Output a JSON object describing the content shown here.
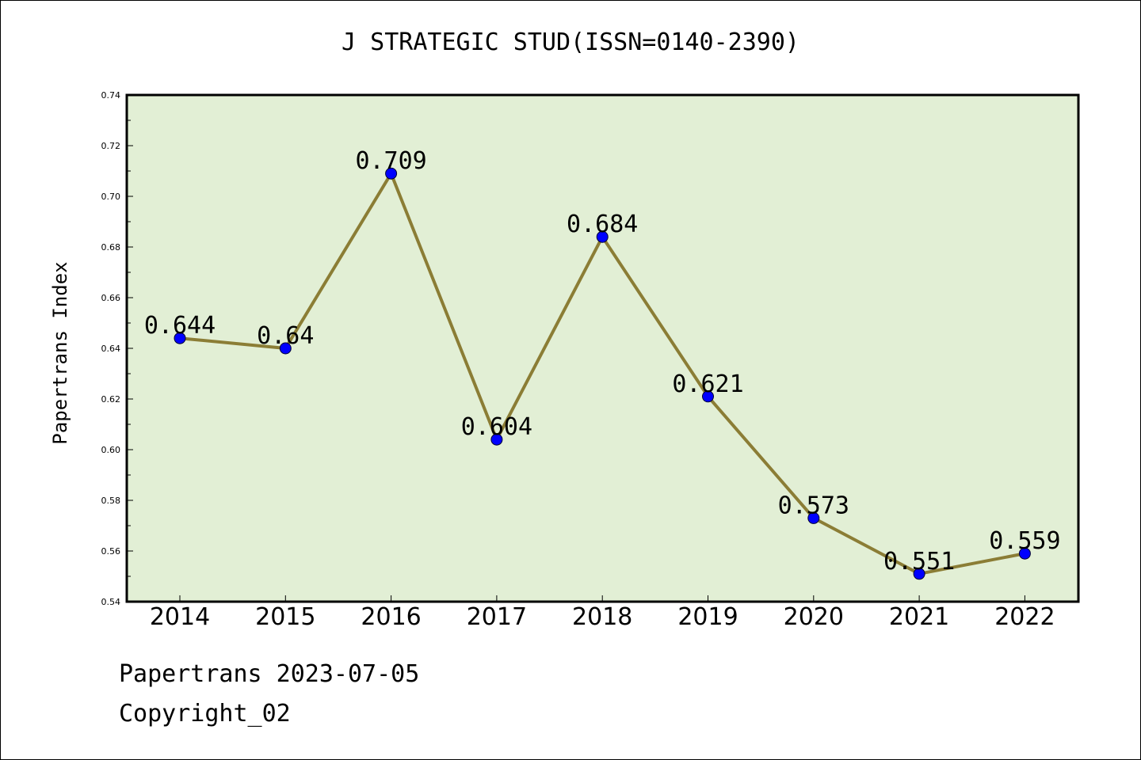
{
  "chart_data": {
    "type": "line",
    "title": "J STRATEGIC STUD(ISSN=0140-2390)",
    "ylabel": "Papertrans Index",
    "xlabel": "",
    "categories": [
      "2014",
      "2015",
      "2016",
      "2017",
      "2018",
      "2019",
      "2020",
      "2021",
      "2022"
    ],
    "values": [
      0.644,
      0.64,
      0.709,
      0.604,
      0.684,
      0.621,
      0.573,
      0.551,
      0.559
    ],
    "data_labels": [
      "0.644",
      "0.64",
      "0.709",
      "0.604",
      "0.684",
      "0.621",
      "0.573",
      "0.551",
      "0.559"
    ],
    "ylim": [
      0.54,
      0.74
    ],
    "yticks": [
      "0.54",
      "0.56",
      "0.58",
      "0.60",
      "0.62",
      "0.64",
      "0.66",
      "0.68",
      "0.70",
      "0.72",
      "0.74"
    ],
    "grid": false,
    "colors": {
      "plot_background": "#e2efd5",
      "line": "#8b7d35",
      "marker": "#0000ff"
    }
  },
  "footer": {
    "line1": "Papertrans 2023-07-05",
    "line2": "Copyright_02"
  }
}
